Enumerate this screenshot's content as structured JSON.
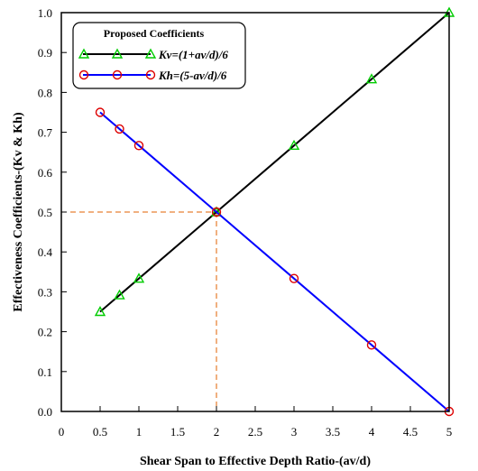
{
  "chart_data": {
    "type": "line",
    "xlabel": "Shear Span to Effective Depth Ratio-(av/d)",
    "ylabel": "Effectiveness Coefficients-(Kv & Kh)",
    "xlim": [
      0,
      5
    ],
    "ylim": [
      0,
      1
    ],
    "x_ticks": [
      "0",
      "0.5",
      "1",
      "1.5",
      "2",
      "2.5",
      "3",
      "3.5",
      "4",
      "4.5",
      "5"
    ],
    "y_ticks": [
      "0.0",
      "0.1",
      "0.2",
      "0.3",
      "0.4",
      "0.5",
      "0.6",
      "0.7",
      "0.8",
      "0.9",
      "1.0"
    ],
    "grid": false,
    "legend": {
      "placement": "top-left",
      "title": "Proposed Coefficients"
    },
    "series": [
      {
        "name": "Kv=(1+av/d)/6",
        "line_color": "#000000",
        "marker": "triangle",
        "marker_color": "#00cc00",
        "x": [
          0.5,
          0.75,
          1,
          2,
          3,
          4,
          5
        ],
        "y": [
          0.25,
          0.2917,
          0.3333,
          0.5,
          0.6667,
          0.8333,
          1.0
        ]
      },
      {
        "name": "Kh=(5-av/d)/6",
        "line_color": "#0000ff",
        "marker": "circle",
        "marker_color": "#dd0000",
        "x": [
          0.5,
          0.75,
          1,
          2,
          3,
          4,
          5
        ],
        "y": [
          0.75,
          0.7083,
          0.6667,
          0.5,
          0.3333,
          0.1667,
          0.0
        ]
      }
    ],
    "reference_lines": {
      "color": "#e06000",
      "x": 2,
      "y": 0.5
    }
  }
}
